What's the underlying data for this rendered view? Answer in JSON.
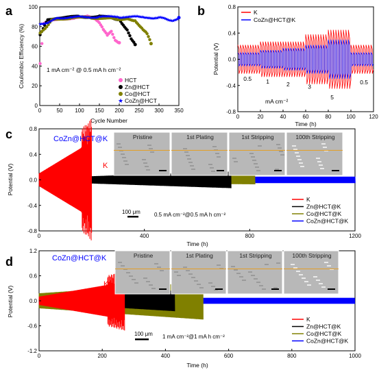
{
  "panels": {
    "a": {
      "letter": "a",
      "xlabel": "Cycle Number",
      "ylabel": "Coulombic Efficiency (%)",
      "xticks": [
        "0",
        "50",
        "100",
        "150",
        "200",
        "250",
        "300",
        "350"
      ],
      "yticks": [
        "0",
        "20",
        "40",
        "60",
        "80",
        "100"
      ],
      "annotation": "1 mA cm⁻² @ 0.5 mA h cm⁻²"
    },
    "b": {
      "letter": "b",
      "xlabel": "Time (h)",
      "ylabel": "Potential (V)",
      "xticks": [
        "0",
        "20",
        "40",
        "60",
        "80",
        "100",
        "120"
      ],
      "yticks": [
        "-0.8",
        "-0.4",
        "0.0",
        "0.4",
        "0.8"
      ],
      "rate_labels": [
        "0.5",
        "1",
        "2",
        "3",
        "5",
        "0.5"
      ],
      "unit_label": "mA cm⁻²"
    },
    "c": {
      "letter": "c",
      "xlabel": "Time (h)",
      "ylabel": "Potential (V)",
      "xticks": [
        "0",
        "400",
        "800",
        "1200"
      ],
      "yticks": [
        "-0.8",
        "-0.4",
        "0.0",
        "0.4",
        "0.8"
      ],
      "heading": "CoZn@HCT@K",
      "k_label": "K",
      "scale_bar": "100 μm",
      "condition": "0.5 mA cm⁻²@0.5 mA h cm⁻²",
      "sem_labels": [
        "Pristine",
        "1st Plating",
        "1st Stripping",
        "100th Stripping"
      ]
    },
    "d": {
      "letter": "d",
      "xlabel": "Time (h)",
      "ylabel": "Potential (V)",
      "xticks": [
        "0",
        "200",
        "400",
        "600",
        "800",
        "1000"
      ],
      "yticks": [
        "-1.2",
        "-0.6",
        "0.0",
        "0.6",
        "1.2"
      ],
      "heading": "CoZn@HCT@K",
      "k_label": "K",
      "scale_bar": "100 μm",
      "condition": "1 mA cm⁻²@1 mA h cm⁻²",
      "sem_labels": [
        "Pristine",
        "1st Plating",
        "1st Stripping",
        "100th Stripping"
      ]
    }
  },
  "colors": {
    "K": "#ff0000",
    "Zn@HCT@K": "#000000",
    "Co@HCT@K": "#808000",
    "CoZn@HCT@K": "#0000ff",
    "HCT": "#ff66cc",
    "heading": "#0000ff",
    "guide": "#e0a030"
  },
  "chart_data": [
    {
      "panel": "a",
      "type": "scatter",
      "xlabel": "Cycle Number",
      "ylabel": "Coulombic Efficiency (%)",
      "xlim": [
        0,
        350
      ],
      "ylim": [
        0,
        110
      ],
      "legend": "bottom-right",
      "series": [
        {
          "name": "HCT",
          "marker": "circle",
          "x": [
            1,
            10,
            30,
            60,
            90,
            120,
            140,
            150,
            160,
            170,
            180,
            190,
            200
          ],
          "y": [
            46,
            92,
            95,
            97,
            98,
            99,
            97,
            93,
            85,
            78,
            82,
            72,
            70
          ]
        },
        {
          "name": "Zn@HCT",
          "marker": "circle",
          "x": [
            1,
            20,
            50,
            100,
            150,
            180,
            200,
            210,
            220,
            230,
            240
          ],
          "y": [
            78,
            96,
            98,
            99,
            99,
            98,
            96,
            90,
            85,
            75,
            68
          ]
        },
        {
          "name": "Co@HCT",
          "marker": "circle",
          "x": [
            1,
            30,
            80,
            130,
            180,
            220,
            240,
            250,
            260,
            270,
            280
          ],
          "y": [
            80,
            95,
            98,
            98,
            97,
            96,
            95,
            90,
            85,
            80,
            69
          ]
        },
        {
          "name": "CoZn@HCT",
          "marker": "star",
          "x": [
            1,
            50,
            100,
            150,
            200,
            250,
            300,
            340,
            350
          ],
          "y": [
            90,
            98,
            99,
            99,
            99,
            99,
            98,
            95,
            98
          ]
        }
      ]
    },
    {
      "panel": "b",
      "type": "line",
      "xlabel": "Time (h)",
      "ylabel": "Potential (V)",
      "xlim": [
        0,
        120
      ],
      "ylim": [
        -0.8,
        0.8
      ],
      "legend": "top-left",
      "series": [
        {
          "name": "K",
          "segments": [
            {
              "t0": 0,
              "t1": 20,
              "amp": 0.22
            },
            {
              "t0": 20,
              "t1": 40,
              "amp": 0.27
            },
            {
              "t0": 40,
              "t1": 60,
              "amp": 0.27
            },
            {
              "t0": 60,
              "t1": 80,
              "amp": 0.38
            },
            {
              "t0": 80,
              "t1": 100,
              "amp": 0.45
            },
            {
              "t0": 100,
              "t1": 120,
              "amp": 0.22
            }
          ]
        },
        {
          "name": "CoZn@HCT@K",
          "segments": [
            {
              "t0": 0,
              "t1": 20,
              "amp": 0.1
            },
            {
              "t0": 20,
              "t1": 40,
              "amp": 0.14
            },
            {
              "t0": 40,
              "t1": 60,
              "amp": 0.17
            },
            {
              "t0": 60,
              "t1": 80,
              "amp": 0.22
            },
            {
              "t0": 80,
              "t1": 100,
              "amp": 0.3
            },
            {
              "t0": 100,
              "t1": 120,
              "amp": 0.1
            }
          ]
        }
      ],
      "rate_labels": [
        "0.5",
        "1",
        "2",
        "3",
        "5",
        "0.5"
      ]
    },
    {
      "panel": "c",
      "type": "line",
      "xlabel": "Time (h)",
      "ylabel": "Potential (V)",
      "xlim": [
        0,
        1200
      ],
      "ylim": [
        -0.8,
        0.8
      ],
      "legend": "bottom-right",
      "series": [
        {
          "name": "K",
          "t_end": 200,
          "amp_start": 0.1,
          "amp_end": 0.6
        },
        {
          "name": "Zn@HCT@K",
          "t_end": 730,
          "amp_start": 0.03,
          "amp_end": 0.13
        },
        {
          "name": "Co@HCT@K",
          "t_end": 820,
          "amp_start": 0.04,
          "amp_end": 0.07
        },
        {
          "name": "CoZn@HCT@K",
          "t_end": 1200,
          "amp_start": 0.05,
          "amp_end": 0.05
        }
      ]
    },
    {
      "panel": "d",
      "type": "line",
      "xlabel": "Time (h)",
      "ylabel": "Potential (V)",
      "xlim": [
        0,
        1000
      ],
      "ylim": [
        -1.2,
        1.2
      ],
      "legend": "bottom-right",
      "series": [
        {
          "name": "K",
          "t_end": 270,
          "amp_start": 0.1,
          "amp_end": 0.45
        },
        {
          "name": "Zn@HCT@K",
          "t_end": 430,
          "amp_start": 0.05,
          "amp_end": 0.25
        },
        {
          "name": "Co@HCT@K",
          "t_end": 520,
          "amp_start": 0.18,
          "amp_end": 0.45
        },
        {
          "name": "CoZn@HCT@K",
          "t_end": 1000,
          "amp_start": 0.07,
          "amp_end": 0.07
        }
      ]
    }
  ]
}
